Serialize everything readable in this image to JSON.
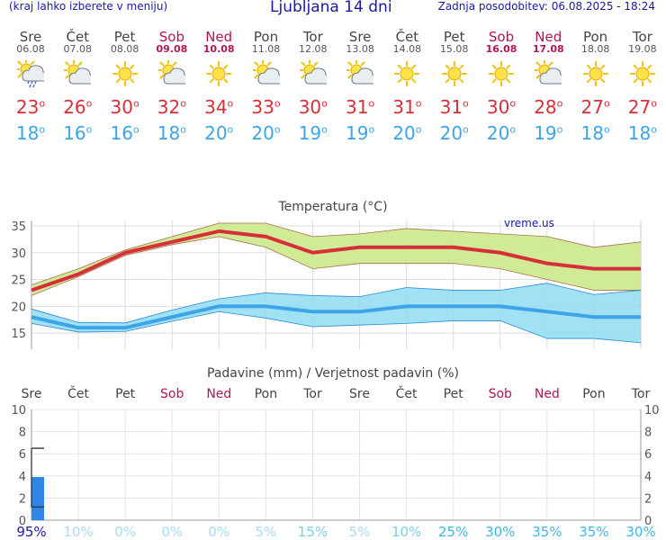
{
  "header": {
    "menu_hint": "(kraj lahko izberete v meniju)",
    "title": "Ljubljana 14 dni",
    "updated": "Zadnja posodobitev: 06.08.2025 - 18:24"
  },
  "colors": {
    "max": "#d62f3a",
    "min": "#3fa3e8",
    "weekend": "#b0155a",
    "header": "#1a1aa0"
  },
  "degree_mark": "o",
  "days": [
    {
      "name": "Sre",
      "date": "06.08",
      "icon": "sun-cloud-rain-icon",
      "max": "23",
      "min": "18",
      "weekend": false
    },
    {
      "name": "Čet",
      "date": "07.08",
      "icon": "sun-cloud-icon",
      "max": "26",
      "min": "16",
      "weekend": false
    },
    {
      "name": "Pet",
      "date": "08.08",
      "icon": "sun-icon",
      "max": "30",
      "min": "16",
      "weekend": false
    },
    {
      "name": "Sob",
      "date": "09.08",
      "icon": "sun-cloud-icon",
      "max": "32",
      "min": "18",
      "weekend": true
    },
    {
      "name": "Ned",
      "date": "10.08",
      "icon": "sun-icon",
      "max": "34",
      "min": "20",
      "weekend": true
    },
    {
      "name": "Pon",
      "date": "11.08",
      "icon": "sun-cloud-icon",
      "max": "33",
      "min": "20",
      "weekend": false
    },
    {
      "name": "Tor",
      "date": "12.08",
      "icon": "sun-cloud-icon",
      "max": "30",
      "min": "19",
      "weekend": false
    },
    {
      "name": "Sre",
      "date": "13.08",
      "icon": "sun-cloud-icon",
      "max": "31",
      "min": "19",
      "weekend": false
    },
    {
      "name": "Čet",
      "date": "14.08",
      "icon": "sun-icon",
      "max": "31",
      "min": "20",
      "weekend": false
    },
    {
      "name": "Pet",
      "date": "15.08",
      "icon": "sun-icon",
      "max": "31",
      "min": "20",
      "weekend": false
    },
    {
      "name": "Sob",
      "date": "16.08",
      "icon": "sun-icon",
      "max": "30",
      "min": "20",
      "weekend": true
    },
    {
      "name": "Ned",
      "date": "17.08",
      "icon": "sun-cloud-icon",
      "max": "28",
      "min": "19",
      "weekend": true
    },
    {
      "name": "Pon",
      "date": "18.08",
      "icon": "sun-icon",
      "max": "27",
      "min": "18",
      "weekend": false
    },
    {
      "name": "Tor",
      "date": "19.08",
      "icon": "sun-icon",
      "max": "27",
      "min": "18",
      "weekend": false
    }
  ],
  "chart_data": [
    {
      "type": "line",
      "title": "Temperatura (°C)",
      "watermark": "vreme.us",
      "ylim": [
        12,
        36
      ],
      "yticks": [
        15,
        20,
        25,
        30,
        35
      ],
      "grid": true,
      "x": [
        0,
        1,
        2,
        3,
        4,
        5,
        6,
        7,
        8,
        9,
        10,
        11,
        12,
        13
      ],
      "series": [
        {
          "name": "max",
          "values": [
            23,
            26,
            30,
            32,
            34,
            33,
            30,
            31,
            31,
            31,
            30,
            28,
            27,
            27
          ],
          "band_low": [
            22,
            25.5,
            29.5,
            31.5,
            33,
            31,
            27,
            28,
            28,
            28,
            27,
            25,
            23,
            23
          ],
          "band_high": [
            24,
            27,
            30.5,
            33,
            35.5,
            35.5,
            33,
            33.5,
            34.5,
            34,
            33.5,
            33,
            31,
            32
          ]
        },
        {
          "name": "min",
          "values": [
            18,
            16,
            16,
            18,
            20,
            20,
            19,
            19,
            20,
            20,
            20,
            19,
            18,
            18
          ],
          "band_low": [
            16.8,
            15.2,
            15.3,
            17.2,
            19,
            17.8,
            16.2,
            16.5,
            16.8,
            17.3,
            17.3,
            14,
            14,
            13.2
          ],
          "band_high": [
            19.5,
            17,
            16.9,
            19.3,
            21.4,
            22.5,
            22,
            21.8,
            23.5,
            23,
            23,
            24.3,
            22.2,
            23
          ]
        }
      ]
    },
    {
      "type": "bar",
      "title": "Padavine (mm) / Verjetnost padavin (%)",
      "ylim": [
        0,
        10
      ],
      "yticks": [
        0,
        2,
        4,
        6,
        8,
        10
      ],
      "categories": [
        "Sre",
        "Čet",
        "Pet",
        "Sob",
        "Ned",
        "Pon",
        "Tor",
        "Sre",
        "Čet",
        "Pet",
        "Sob",
        "Ned",
        "Pon",
        "Tor"
      ],
      "values": [
        3.9,
        0,
        0,
        0,
        0,
        0,
        0,
        0,
        0,
        0,
        0,
        0,
        0,
        0
      ],
      "error_low": 1.2,
      "error_high": 6.5,
      "probability": [
        "95%",
        "10%",
        "0%",
        "0%",
        "0%",
        "5%",
        "15%",
        "5%",
        "10%",
        "25%",
        "30%",
        "35%",
        "35%",
        "30%"
      ],
      "probability_colors": [
        "#1a1aa0",
        "#a9dcf5",
        "#a9dcf5",
        "#a9dcf5",
        "#a9dcf5",
        "#a9dcf5",
        "#7fcdf0",
        "#a9dcf5",
        "#7fcdf0",
        "#3fb6ea",
        "#3fb6ea",
        "#3fb6ea",
        "#3fb6ea",
        "#3fb6ea"
      ]
    }
  ]
}
